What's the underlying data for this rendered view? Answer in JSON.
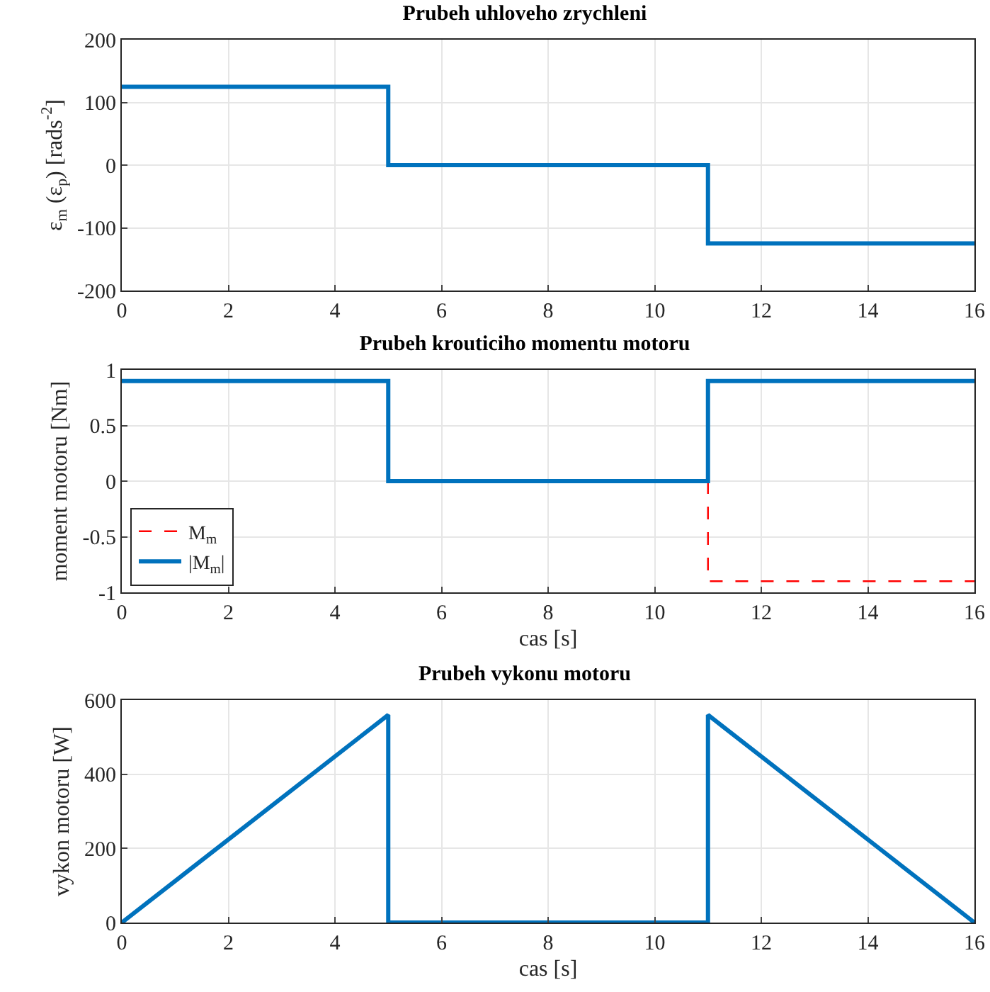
{
  "chart_data": [
    {
      "type": "line",
      "title": "Prubeh uhloveho zrychleni",
      "ylabel": "ε$_{m}$ (ε$_{p}$) [rads$^{-2}$]",
      "xlim": [
        0,
        16
      ],
      "xticks": [
        0,
        2,
        4,
        6,
        8,
        10,
        12,
        14,
        16
      ],
      "ylim": [
        -200,
        200
      ],
      "yticks": [
        -200,
        -100,
        0,
        100,
        200
      ],
      "grid": true,
      "legend": false,
      "series": [
        {
          "color": "#0072bd",
          "x": [
            0,
            5,
            5,
            11,
            11,
            16
          ],
          "values": [
            125,
            125,
            0,
            0,
            -125,
            -125
          ]
        }
      ]
    },
    {
      "type": "line",
      "title": "Prubeh krouticiho momentu motoru",
      "xlabel": "cas [s]",
      "ylabel": "moment motoru [Nm]",
      "xlim": [
        0,
        16
      ],
      "xticks": [
        0,
        2,
        4,
        6,
        8,
        10,
        12,
        14,
        16
      ],
      "ylim": [
        -1,
        1
      ],
      "yticks": [
        -1,
        -0.5,
        0,
        0.5,
        1
      ],
      "grid": true,
      "legend": "bottom left",
      "series": [
        {
          "name": "M$_{m}$",
          "color": "#ff0000",
          "line_style": "dashed",
          "x": [
            11,
            11,
            16
          ],
          "values": [
            0,
            -0.9,
            -0.9
          ]
        },
        {
          "name": "|M$_{m}$|",
          "color": "#0072bd",
          "line_style": "solid",
          "x": [
            0,
            5,
            5,
            11,
            11,
            16
          ],
          "values": [
            0.9,
            0.9,
            0,
            0,
            0.9,
            0.9
          ]
        }
      ]
    },
    {
      "type": "line",
      "title": "Prubeh vykonu motoru",
      "xlabel": "cas [s]",
      "ylabel": "vykon motoru [W]",
      "xlim": [
        0,
        16
      ],
      "xticks": [
        0,
        2,
        4,
        6,
        8,
        10,
        12,
        14,
        16
      ],
      "ylim": [
        0,
        600
      ],
      "yticks": [
        0,
        200,
        400,
        600
      ],
      "grid": true,
      "legend": false,
      "series": [
        {
          "color": "#0072bd",
          "x": [
            0,
            5,
            5,
            11,
            11,
            16
          ],
          "values": [
            0,
            560,
            0,
            0,
            560,
            0
          ]
        }
      ]
    }
  ]
}
